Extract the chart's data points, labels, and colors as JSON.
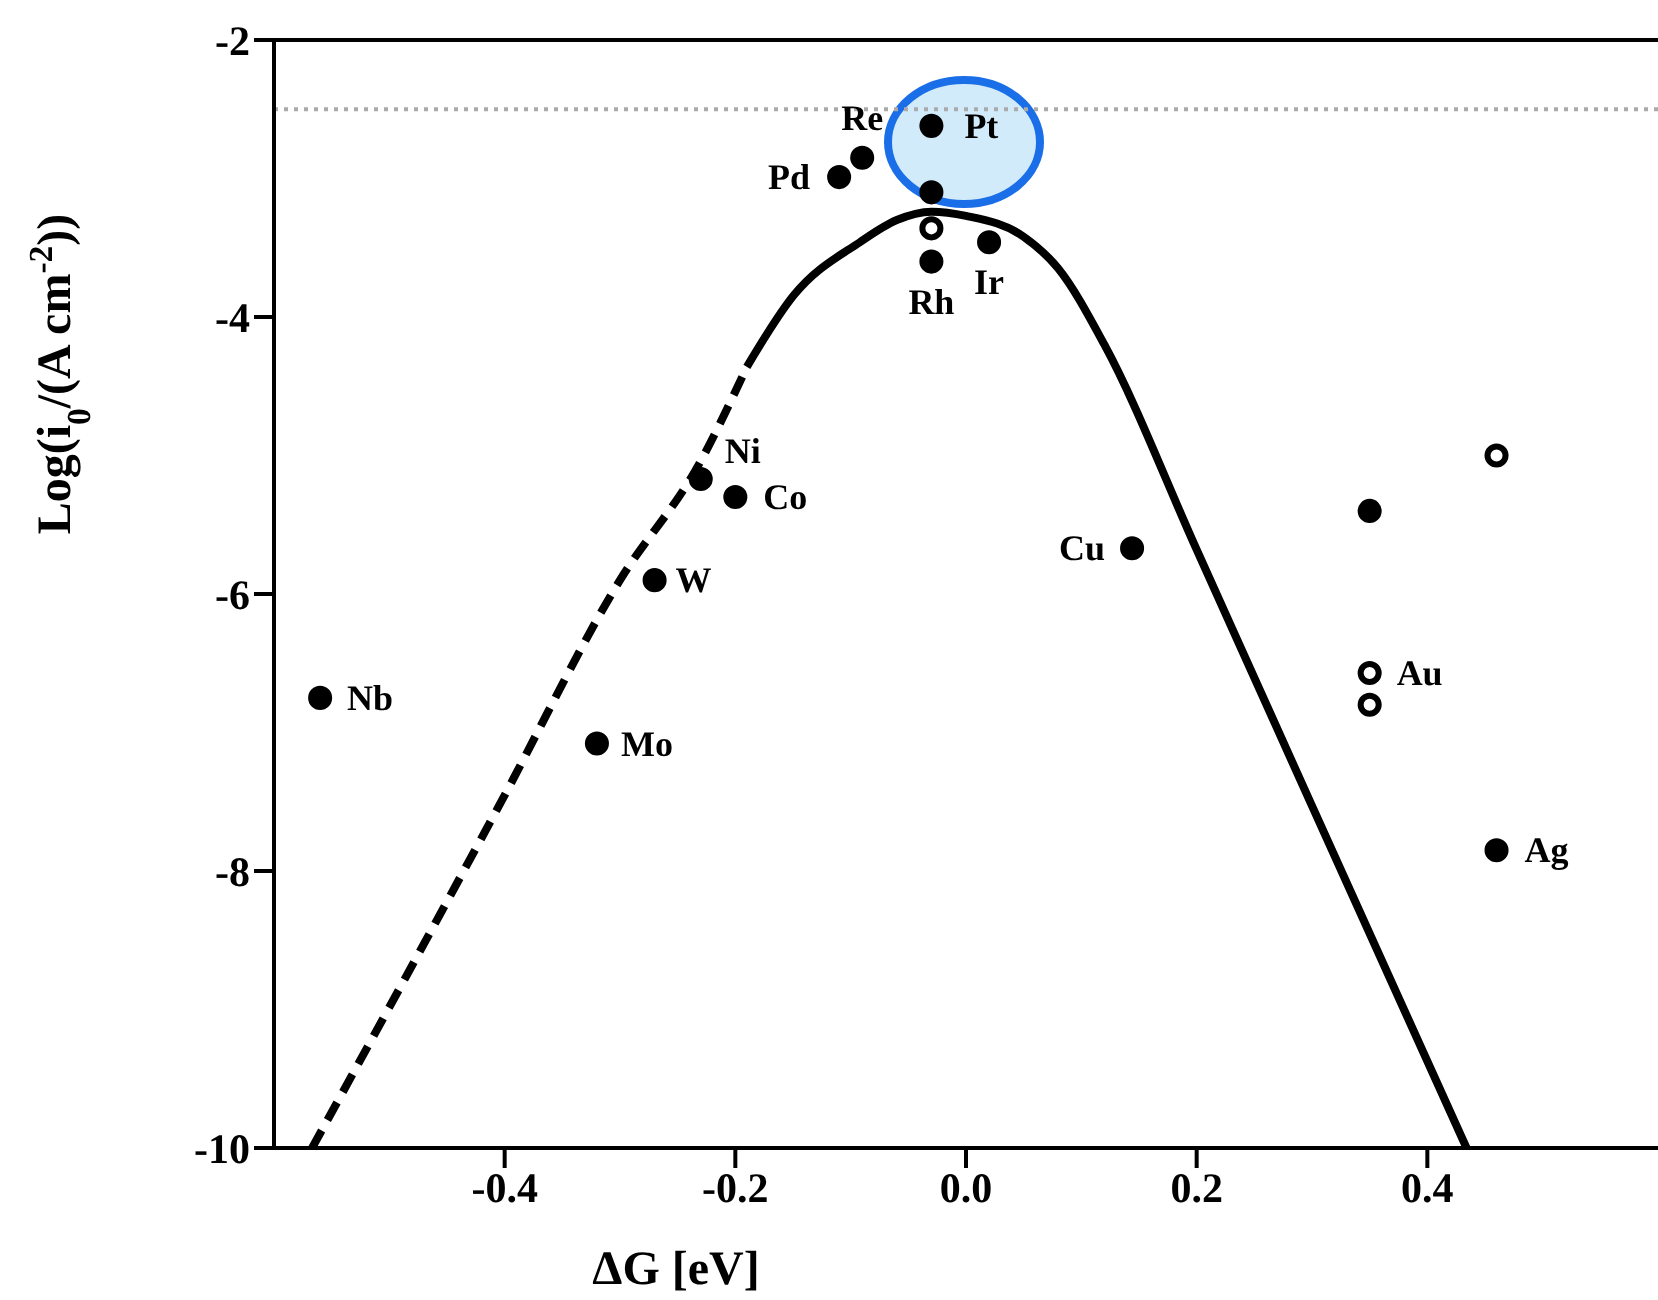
{
  "chart_data": {
    "type": "scatter",
    "xlabel": "ΔG [eV]",
    "ylabel": "Log(i$_{0}$/(A cm$^{-2}$))",
    "xlim": [
      -0.6,
      0.6
    ],
    "ylim": [
      -10,
      -2
    ],
    "xticks": [
      -0.4,
      -0.2,
      {
        "value": 0,
        "label": "0.0"
      },
      0.2,
      0.4
    ],
    "yticks": [
      -2,
      -4,
      -6,
      -8,
      -10
    ],
    "grid": false,
    "marker": "circle",
    "series": [
      {
        "type": "line",
        "color": "#000000",
        "line_style": "dashed",
        "marker": "none",
        "x": [
          -0.567,
          -0.405,
          -0.3,
          -0.23,
          -0.19
        ],
        "values": [
          -10,
          -7.53,
          -5.9,
          -5.04,
          -4.36
        ]
      },
      {
        "type": "line",
        "color": "#000000",
        "line_style": "solid",
        "marker": "none",
        "x": [
          -0.19,
          -0.149,
          -0.092,
          -0.06,
          -0.03,
          0.0,
          0.05,
          0.08,
          0.12,
          0.2,
          0.3,
          0.434
        ],
        "values": [
          -4.36,
          -3.84,
          -3.46,
          -3.3,
          -3.24,
          -3.27,
          -3.42,
          -3.65,
          -4.2,
          -5.68,
          -7.53,
          -10
        ]
      },
      {
        "color": "#000000",
        "x": [
          -0.56,
          -0.32,
          -0.27,
          -0.23,
          -0.2,
          -0.11,
          -0.09,
          -0.03,
          -0.03,
          -0.03,
          0.02,
          0.144,
          0.35,
          0.46
        ],
        "values": [
          -6.75,
          -7.08,
          -5.9,
          -5.17,
          -5.3,
          -2.99,
          -2.85,
          -2.62,
          -3.1,
          -3.6,
          -3.46,
          -5.67,
          -5.4,
          -7.85
        ]
      },
      {
        "color": "#ffffff",
        "x": [
          -0.03,
          0.46,
          0.35,
          0.35
        ],
        "values": [
          -3.36,
          -5.0,
          -6.57,
          -6.8
        ]
      }
    ],
    "ref_lines": [
      {
        "axis": "y",
        "value": -2.5,
        "color": "#aaaaaa",
        "line_style": "dotted"
      }
    ],
    "annotations": [
      {
        "text": "Re",
        "x": -0.09,
        "y": -2.85
      },
      {
        "text": "Pd",
        "x": -0.11,
        "y": -2.99
      },
      {
        "text": "Pt",
        "x": -0.03,
        "y": -2.62
      },
      {
        "text": "Rh",
        "x": -0.03,
        "y": -3.6
      },
      {
        "text": "Ir",
        "x": 0.02,
        "y": -3.46
      },
      {
        "text": "Ni",
        "x": -0.23,
        "y": -5.17
      },
      {
        "text": "Co",
        "x": -0.2,
        "y": -5.3
      },
      {
        "text": "W",
        "x": -0.27,
        "y": -5.9
      },
      {
        "text": "Nb",
        "x": -0.56,
        "y": -6.75
      },
      {
        "text": "Mo",
        "x": -0.32,
        "y": -7.08
      },
      {
        "text": "Cu",
        "x": 0.144,
        "y": -5.67
      },
      {
        "text": "Au",
        "x": 0.35,
        "y": -6.57
      },
      {
        "text": "Ag",
        "x": 0.46,
        "y": -7.85
      }
    ]
  }
}
